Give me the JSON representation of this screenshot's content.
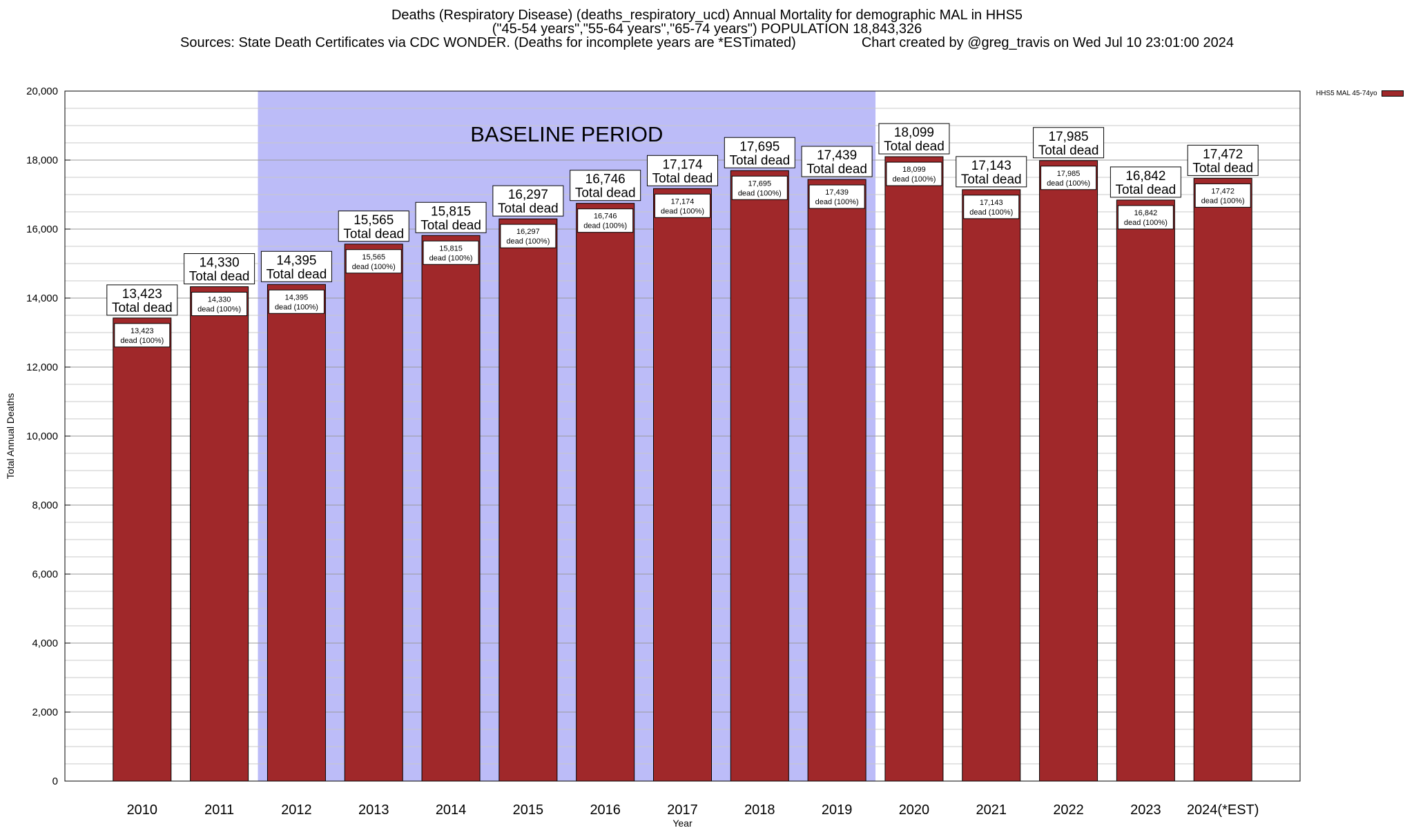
{
  "title": {
    "line1": "Deaths (Respiratory Disease) (deaths_respiratory_ucd) Annual Mortality for demographic MAL in HHS5",
    "line2": "(\"45-54 years\",\"55-64 years\",\"65-74 years\") POPULATION 18,843,326",
    "line3_left": "Sources: State Death Certificates via CDC WONDER. (Deaths for incomplete years are *ESTimated)",
    "line3_right": "Chart created by @greg_travis on Wed Jul 10 23:01:00 2024"
  },
  "legend": {
    "label": "HHS5 MAL 45-74yo",
    "color": "#a0282a"
  },
  "colors": {
    "bar": "#a0282a",
    "baseline": "#bcbcf8"
  },
  "chart_data": {
    "type": "bar",
    "xlabel": "Year",
    "ylabel": "Total Annual Deaths",
    "ylim": [
      0,
      20000
    ],
    "yticks": [
      "0",
      "2,000",
      "4,000",
      "6,000",
      "8,000",
      "10,000",
      "12,000",
      "14,000",
      "16,000",
      "18,000",
      "20,000"
    ],
    "grid": true,
    "legend_position": "top-right",
    "categories": [
      "2010",
      "2011",
      "2012",
      "2013",
      "2014",
      "2015",
      "2016",
      "2017",
      "2018",
      "2019",
      "2020",
      "2021",
      "2022",
      "2023",
      "2024(*EST)"
    ],
    "series": [
      {
        "name": "HHS5 MAL 45-74yo",
        "values": [
          13423,
          14330,
          14395,
          15565,
          15815,
          16297,
          16746,
          17174,
          17695,
          17439,
          18099,
          17143,
          17985,
          16842,
          17472
        ]
      }
    ],
    "value_labels": [
      "13,423",
      "14,330",
      "14,395",
      "15,565",
      "15,815",
      "16,297",
      "16,746",
      "17,174",
      "17,695",
      "17,439",
      "18,099",
      "17,143",
      "17,985",
      "16,842",
      "17,472"
    ],
    "top_label_suffix": "Total dead",
    "inner_label_suffix": "dead (100%)",
    "baseline_period": {
      "label": "BASELINE PERIOD",
      "from": "2012",
      "to": "2019"
    }
  }
}
